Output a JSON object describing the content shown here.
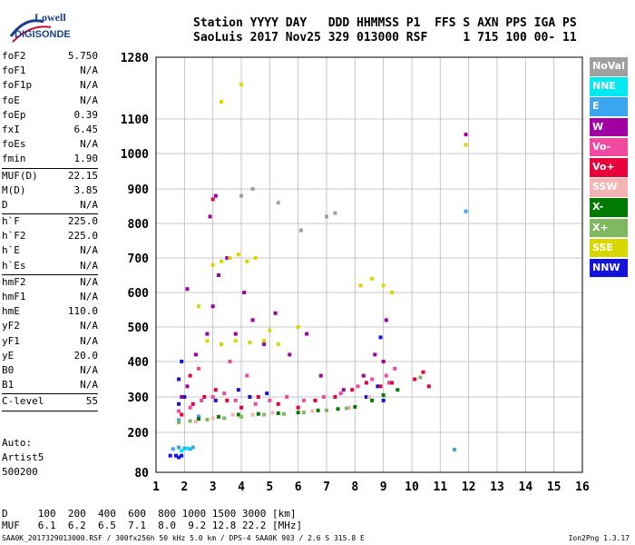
{
  "logo": {
    "line1": "Lowell",
    "line2": "DIGISONDE"
  },
  "header": {
    "labels_line": "Station YYYY DAY   DDD HHMMSS P1  FFS S AXN PPS IGA PS",
    "values_line": "SaoLuis 2017 Nov25 329 013000 RSF     1 715 100 00- 11"
  },
  "params": [
    {
      "k": "foF2",
      "v": "5.750"
    },
    {
      "k": "foF1",
      "v": "N/A"
    },
    {
      "k": "foF1p",
      "v": "N/A"
    },
    {
      "k": "foE",
      "v": "N/A"
    },
    {
      "k": "foEp",
      "v": "0.39"
    },
    {
      "k": "fxI",
      "v": "6.45"
    },
    {
      "k": "foEs",
      "v": "N/A"
    },
    {
      "k": "fmin",
      "v": "1.90"
    },
    {
      "sep": true
    },
    {
      "k": "MUF(D)",
      "v": "22.15"
    },
    {
      "k": "M(D)",
      "v": "3.85"
    },
    {
      "k": "D",
      "v": "N/A"
    },
    {
      "sep": true
    },
    {
      "k": "h`F",
      "v": "225.0"
    },
    {
      "k": "h`F2",
      "v": "225.0"
    },
    {
      "k": "h`E",
      "v": "N/A"
    },
    {
      "k": "h`Es",
      "v": "N/A"
    },
    {
      "sep": true
    },
    {
      "k": "hmF2",
      "v": "N/A"
    },
    {
      "k": "hmF1",
      "v": "N/A"
    },
    {
      "k": "hmE",
      "v": "110.0"
    },
    {
      "k": "yF2",
      "v": "N/A"
    },
    {
      "k": "yF1",
      "v": "N/A"
    },
    {
      "k": "yE",
      "v": "20.0"
    },
    {
      "k": "B0",
      "v": "N/A"
    },
    {
      "k": "B1",
      "v": "N/A"
    },
    {
      "sep": true
    },
    {
      "k": "C-level",
      "v": "55"
    },
    {
      "sep": true
    }
  ],
  "auto": {
    "line1": "Auto:",
    "line2": "Artist5",
    "line3": "500200"
  },
  "legend": [
    {
      "label": "NoVal",
      "color": "#a0a0a0"
    },
    {
      "label": "NNE",
      "color": "#00e8f0"
    },
    {
      "label": "E",
      "color": "#3aa6f0"
    },
    {
      "label": "W",
      "color": "#a000a0"
    },
    {
      "label": "Vo-",
      "color": "#f04aa0"
    },
    {
      "label": "Vo+",
      "color": "#e8003a"
    },
    {
      "label": "SSW",
      "color": "#f4b4b4"
    },
    {
      "label": "X-",
      "color": "#007a00"
    },
    {
      "label": "X+",
      "color": "#80b860"
    },
    {
      "label": "SSE",
      "color": "#d8d800"
    },
    {
      "label": "NNW",
      "color": "#1414d8"
    }
  ],
  "bottom": {
    "d_line": "D     100  200  400  600  800 1000 1500 3000 [km]",
    "muf_line": "MUF   6.1  6.2  6.5  7.1  8.0  9.2 12.8 22.2 [MHz]"
  },
  "footer": {
    "text": "SAA0K_2017329013000.RSF / 300fx256h 50 kHz 5.0 km / DPS-4 SAA0K 903 / 2.6 S 315.8 E",
    "version": "Ion2Png 1.3.17"
  },
  "chart_data": {
    "type": "scatter",
    "title": "",
    "xlabel": "",
    "ylabel": "",
    "xlim": [
      1,
      16
    ],
    "ylim": [
      80,
      1280
    ],
    "x_ticks": [
      1,
      2,
      3,
      4,
      5,
      6,
      7,
      8,
      9,
      10,
      11,
      12,
      13,
      14,
      15,
      16
    ],
    "y_ticks": [
      80,
      200,
      300,
      400,
      500,
      600,
      700,
      800,
      900,
      1000,
      1100,
      1280
    ],
    "grid": true,
    "legend_position": "right",
    "series": [
      {
        "name": "NNW",
        "color": "#1414d8",
        "points": [
          [
            1.5,
            130
          ],
          [
            1.7,
            130
          ],
          [
            1.8,
            125
          ],
          [
            1.9,
            130
          ],
          [
            1.8,
            280
          ],
          [
            2.0,
            300
          ],
          [
            1.8,
            350
          ],
          [
            3.1,
            290
          ],
          [
            3.9,
            320
          ],
          [
            4.3,
            300
          ],
          [
            4.9,
            310
          ],
          [
            8.4,
            300
          ],
          [
            8.8,
            330
          ],
          [
            9.2,
            340
          ],
          [
            9.0,
            290
          ],
          [
            1.9,
            400
          ],
          [
            8.9,
            470
          ]
        ]
      },
      {
        "name": "E",
        "color": "#3aa6f0",
        "points": [
          [
            1.6,
            150
          ],
          [
            1.8,
            155
          ],
          [
            2.0,
            152
          ],
          [
            2.2,
            150
          ],
          [
            2.3,
            155
          ],
          [
            1.8,
            235
          ],
          [
            2.5,
            245
          ],
          [
            11.5,
            148
          ],
          [
            11.9,
            835
          ]
        ]
      },
      {
        "name": "W",
        "color": "#a000a0",
        "points": [
          [
            1.9,
            300
          ],
          [
            2.1,
            330
          ],
          [
            2.4,
            420
          ],
          [
            2.8,
            480
          ],
          [
            3.0,
            560
          ],
          [
            3.1,
            880
          ],
          [
            3.2,
            650
          ],
          [
            3.5,
            700
          ],
          [
            3.8,
            480
          ],
          [
            4.1,
            600
          ],
          [
            4.4,
            520
          ],
          [
            4.8,
            450
          ],
          [
            5.2,
            540
          ],
          [
            5.7,
            420
          ],
          [
            6.3,
            480
          ],
          [
            6.8,
            360
          ],
          [
            7.6,
            320
          ],
          [
            8.3,
            360
          ],
          [
            8.7,
            420
          ],
          [
            9.0,
            400
          ],
          [
            9.1,
            520
          ],
          [
            11.9,
            1055
          ],
          [
            2.1,
            610
          ],
          [
            2.9,
            820
          ]
        ]
      },
      {
        "name": "Vo-",
        "color": "#f04aa0",
        "points": [
          [
            1.8,
            260
          ],
          [
            2.2,
            270
          ],
          [
            2.6,
            290
          ],
          [
            3.0,
            300
          ],
          [
            3.4,
            310
          ],
          [
            3.8,
            290
          ],
          [
            4.5,
            280
          ],
          [
            5.0,
            290
          ],
          [
            5.6,
            300
          ],
          [
            6.2,
            290
          ],
          [
            6.9,
            300
          ],
          [
            7.5,
            310
          ],
          [
            8.1,
            330
          ],
          [
            8.6,
            350
          ],
          [
            9.1,
            360
          ],
          [
            9.4,
            380
          ],
          [
            2.5,
            380
          ],
          [
            3.6,
            400
          ],
          [
            4.2,
            360
          ],
          [
            9.2,
            340
          ]
        ]
      },
      {
        "name": "Vo+",
        "color": "#e8003a",
        "points": [
          [
            1.9,
            250
          ],
          [
            2.3,
            280
          ],
          [
            2.7,
            300
          ],
          [
            3.1,
            320
          ],
          [
            3.5,
            290
          ],
          [
            4.0,
            270
          ],
          [
            4.6,
            300
          ],
          [
            5.3,
            280
          ],
          [
            6.0,
            270
          ],
          [
            6.6,
            290
          ],
          [
            7.3,
            300
          ],
          [
            7.9,
            320
          ],
          [
            8.4,
            340
          ],
          [
            8.9,
            330
          ],
          [
            9.3,
            340
          ],
          [
            10.1,
            350
          ],
          [
            10.4,
            370
          ],
          [
            10.6,
            330
          ],
          [
            3.0,
            870
          ],
          [
            2.2,
            360
          ]
        ]
      },
      {
        "name": "SSW",
        "color": "#f4b4b4",
        "points": [
          [
            2.4,
            230
          ],
          [
            3.0,
            240
          ],
          [
            3.7,
            250
          ],
          [
            4.4,
            250
          ],
          [
            5.1,
            255
          ],
          [
            6.5,
            260
          ],
          [
            7.8,
            270
          ],
          [
            8.5,
            300
          ]
        ]
      },
      {
        "name": "X-",
        "color": "#007a00",
        "points": [
          [
            2.5,
            238
          ],
          [
            3.2,
            244
          ],
          [
            3.9,
            250
          ],
          [
            4.6,
            252
          ],
          [
            5.3,
            254
          ],
          [
            6.0,
            256
          ],
          [
            6.7,
            262
          ],
          [
            7.4,
            266
          ],
          [
            8.0,
            272
          ],
          [
            8.6,
            290
          ],
          [
            9.0,
            305
          ],
          [
            9.5,
            320
          ]
        ]
      },
      {
        "name": "X+",
        "color": "#80b860",
        "points": [
          [
            1.8,
            228
          ],
          [
            2.2,
            232
          ],
          [
            2.8,
            236
          ],
          [
            3.4,
            240
          ],
          [
            4.0,
            244
          ],
          [
            4.8,
            250
          ],
          [
            5.5,
            252
          ],
          [
            6.2,
            256
          ],
          [
            7.0,
            262
          ],
          [
            7.7,
            268
          ],
          [
            10.3,
            355
          ]
        ]
      },
      {
        "name": "SSE",
        "color": "#d8d800",
        "points": [
          [
            3.0,
            680
          ],
          [
            3.3,
            690
          ],
          [
            3.6,
            700
          ],
          [
            3.9,
            710
          ],
          [
            4.2,
            690
          ],
          [
            4.5,
            700
          ],
          [
            2.8,
            460
          ],
          [
            3.3,
            450
          ],
          [
            3.8,
            460
          ],
          [
            4.3,
            455
          ],
          [
            4.8,
            460
          ],
          [
            5.3,
            450
          ],
          [
            8.2,
            620
          ],
          [
            8.6,
            640
          ],
          [
            9.0,
            620
          ],
          [
            9.3,
            600
          ],
          [
            3.3,
            1150
          ],
          [
            4.0,
            1200
          ],
          [
            5.0,
            490
          ],
          [
            6.0,
            500
          ],
          [
            11.9,
            1025
          ],
          [
            2.5,
            560
          ]
        ]
      },
      {
        "name": "NoVal",
        "color": "#a0a0a0",
        "points": [
          [
            4.0,
            880
          ],
          [
            4.4,
            900
          ],
          [
            5.3,
            860
          ],
          [
            6.1,
            780
          ],
          [
            7.0,
            820
          ],
          [
            7.3,
            830
          ]
        ]
      },
      {
        "name": "NNE",
        "color": "#00e8f0",
        "points": [
          [
            1.9,
            145
          ],
          [
            2.1,
            152
          ]
        ]
      }
    ]
  }
}
